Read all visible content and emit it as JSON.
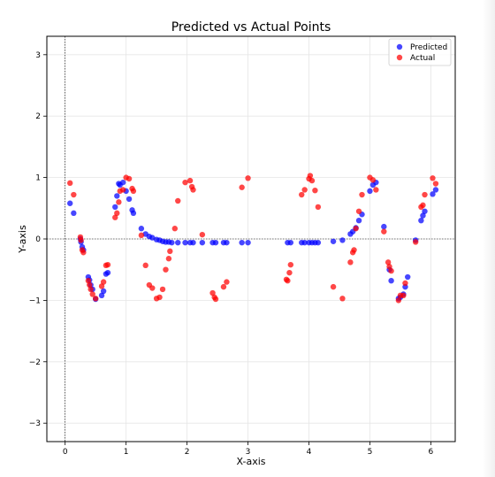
{
  "chart_data": {
    "type": "scatter",
    "title": "Predicted vs Actual Points",
    "xlabel": "X-axis",
    "ylabel": "Y-axis",
    "xlim": [
      -0.3,
      6.4
    ],
    "ylim": [
      -3.3,
      3.3
    ],
    "xticks": [
      0,
      1,
      2,
      3,
      4,
      5,
      6
    ],
    "yticks": [
      -3,
      -2,
      -1,
      0,
      1,
      2,
      3
    ],
    "grid": true,
    "reference_lines": {
      "x": 0,
      "y": 0
    },
    "legend": {
      "position": "upper-right",
      "entries": [
        "Predicted",
        "Actual"
      ]
    },
    "series": [
      {
        "name": "Predicted",
        "color": "#0000ff",
        "points": [
          [
            0.08,
            0.58
          ],
          [
            0.14,
            0.42
          ],
          [
            0.25,
            0.0
          ],
          [
            0.26,
            -0.05
          ],
          [
            0.28,
            -0.13
          ],
          [
            0.3,
            -0.18
          ],
          [
            0.38,
            -0.62
          ],
          [
            0.4,
            -0.67
          ],
          [
            0.42,
            -0.75
          ],
          [
            0.45,
            -0.82
          ],
          [
            0.5,
            -0.98
          ],
          [
            0.6,
            -0.92
          ],
          [
            0.63,
            -0.85
          ],
          [
            0.67,
            -0.57
          ],
          [
            0.7,
            -0.55
          ],
          [
            0.82,
            0.52
          ],
          [
            0.85,
            0.7
          ],
          [
            0.88,
            0.9
          ],
          [
            0.9,
            0.88
          ],
          [
            0.95,
            0.92
          ],
          [
            1.0,
            0.78
          ],
          [
            1.05,
            0.65
          ],
          [
            1.1,
            0.47
          ],
          [
            1.12,
            0.42
          ],
          [
            1.25,
            0.17
          ],
          [
            1.32,
            0.08
          ],
          [
            1.38,
            0.04
          ],
          [
            1.43,
            0.02
          ],
          [
            1.5,
            -0.01
          ],
          [
            1.55,
            -0.02
          ],
          [
            1.6,
            -0.04
          ],
          [
            1.65,
            -0.05
          ],
          [
            1.7,
            -0.05
          ],
          [
            1.75,
            -0.06
          ],
          [
            1.85,
            -0.06
          ],
          [
            1.97,
            -0.06
          ],
          [
            2.05,
            -0.06
          ],
          [
            2.1,
            -0.06
          ],
          [
            2.25,
            -0.06
          ],
          [
            2.42,
            -0.06
          ],
          [
            2.47,
            -0.06
          ],
          [
            2.6,
            -0.06
          ],
          [
            2.65,
            -0.06
          ],
          [
            2.9,
            -0.06
          ],
          [
            3.0,
            -0.06
          ],
          [
            3.65,
            -0.06
          ],
          [
            3.7,
            -0.06
          ],
          [
            3.88,
            -0.06
          ],
          [
            3.93,
            -0.06
          ],
          [
            4.0,
            -0.06
          ],
          [
            4.05,
            -0.06
          ],
          [
            4.1,
            -0.06
          ],
          [
            4.15,
            -0.06
          ],
          [
            4.4,
            -0.04
          ],
          [
            4.55,
            -0.02
          ],
          [
            4.68,
            0.08
          ],
          [
            4.72,
            0.12
          ],
          [
            4.77,
            0.18
          ],
          [
            4.82,
            0.3
          ],
          [
            4.87,
            0.4
          ],
          [
            5.0,
            0.78
          ],
          [
            5.05,
            0.88
          ],
          [
            5.1,
            0.92
          ],
          [
            5.23,
            0.2
          ],
          [
            5.32,
            -0.5
          ],
          [
            5.35,
            -0.68
          ],
          [
            5.47,
            -0.97
          ],
          [
            5.5,
            -0.95
          ],
          [
            5.55,
            -0.9
          ],
          [
            5.58,
            -0.78
          ],
          [
            5.62,
            -0.62
          ],
          [
            5.75,
            -0.02
          ],
          [
            5.84,
            0.3
          ],
          [
            5.87,
            0.38
          ],
          [
            5.9,
            0.45
          ],
          [
            6.03,
            0.73
          ],
          [
            6.08,
            0.8
          ]
        ]
      },
      {
        "name": "Actual",
        "color": "#ff0000",
        "points": [
          [
            0.08,
            0.91
          ],
          [
            0.14,
            0.72
          ],
          [
            0.25,
            0.03
          ],
          [
            0.26,
            -0.02
          ],
          [
            0.28,
            -0.18
          ],
          [
            0.3,
            -0.22
          ],
          [
            0.38,
            -0.68
          ],
          [
            0.4,
            -0.75
          ],
          [
            0.42,
            -0.82
          ],
          [
            0.45,
            -0.9
          ],
          [
            0.5,
            -0.97
          ],
          [
            0.6,
            -0.77
          ],
          [
            0.63,
            -0.7
          ],
          [
            0.67,
            -0.43
          ],
          [
            0.7,
            -0.42
          ],
          [
            0.82,
            0.35
          ],
          [
            0.85,
            0.42
          ],
          [
            0.88,
            0.6
          ],
          [
            0.9,
            0.78
          ],
          [
            0.95,
            0.8
          ],
          [
            1.0,
            1.0
          ],
          [
            1.05,
            0.98
          ],
          [
            1.1,
            0.82
          ],
          [
            1.12,
            0.78
          ],
          [
            1.25,
            0.06
          ],
          [
            1.32,
            -0.43
          ],
          [
            1.38,
            -0.75
          ],
          [
            1.43,
            -0.8
          ],
          [
            1.5,
            -0.97
          ],
          [
            1.55,
            -0.95
          ],
          [
            1.6,
            -0.82
          ],
          [
            1.65,
            -0.5
          ],
          [
            1.7,
            -0.32
          ],
          [
            1.72,
            -0.2
          ],
          [
            1.8,
            0.17
          ],
          [
            1.85,
            0.62
          ],
          [
            1.97,
            0.92
          ],
          [
            2.05,
            0.95
          ],
          [
            2.08,
            0.85
          ],
          [
            2.1,
            0.8
          ],
          [
            2.25,
            0.07
          ],
          [
            2.42,
            -0.88
          ],
          [
            2.45,
            -0.95
          ],
          [
            2.47,
            -0.98
          ],
          [
            2.6,
            -0.78
          ],
          [
            2.65,
            -0.7
          ],
          [
            2.9,
            0.84
          ],
          [
            3.0,
            0.99
          ],
          [
            3.63,
            -0.66
          ],
          [
            3.65,
            -0.68
          ],
          [
            3.68,
            -0.55
          ],
          [
            3.7,
            -0.42
          ],
          [
            3.88,
            0.72
          ],
          [
            3.93,
            0.8
          ],
          [
            4.0,
            0.98
          ],
          [
            4.02,
            1.03
          ],
          [
            4.05,
            0.95
          ],
          [
            4.1,
            0.79
          ],
          [
            4.15,
            0.52
          ],
          [
            4.4,
            -0.78
          ],
          [
            4.55,
            -0.97
          ],
          [
            4.68,
            -0.38
          ],
          [
            4.72,
            -0.22
          ],
          [
            4.74,
            -0.18
          ],
          [
            4.77,
            0.17
          ],
          [
            4.82,
            0.45
          ],
          [
            4.87,
            0.72
          ],
          [
            5.0,
            1.0
          ],
          [
            5.05,
            0.96
          ],
          [
            5.1,
            0.8
          ],
          [
            5.23,
            0.12
          ],
          [
            5.3,
            -0.38
          ],
          [
            5.32,
            -0.45
          ],
          [
            5.35,
            -0.52
          ],
          [
            5.47,
            -1.0
          ],
          [
            5.5,
            -0.92
          ],
          [
            5.55,
            -0.92
          ],
          [
            5.58,
            -0.72
          ],
          [
            5.75,
            -0.05
          ],
          [
            5.84,
            0.52
          ],
          [
            5.87,
            0.55
          ],
          [
            5.9,
            0.72
          ],
          [
            6.03,
            0.99
          ],
          [
            6.08,
            0.9
          ]
        ]
      }
    ]
  }
}
